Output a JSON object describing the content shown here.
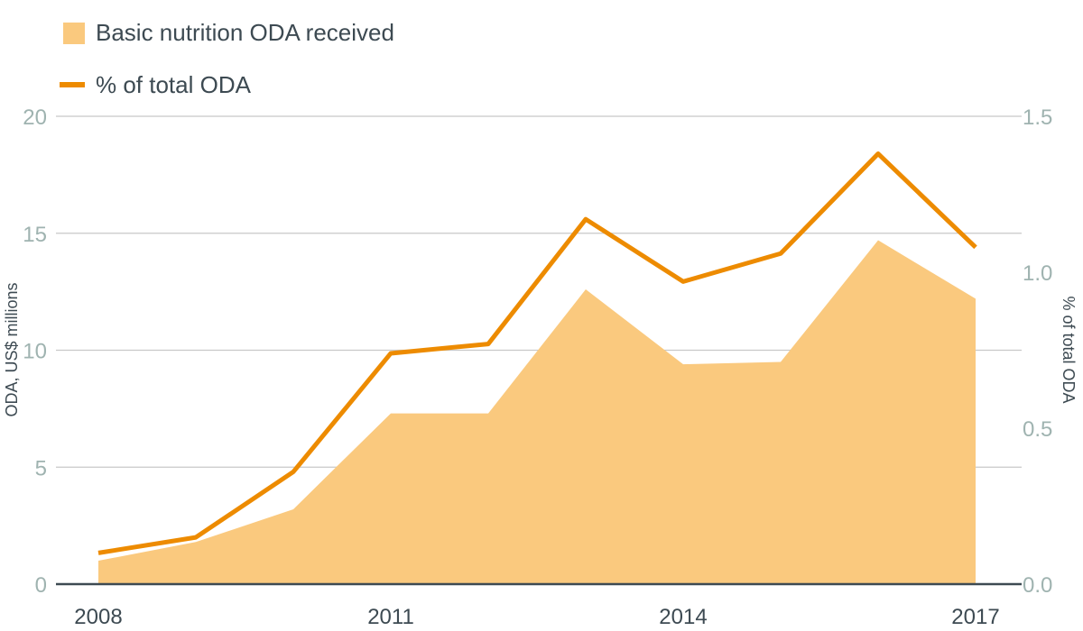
{
  "chart_data": {
    "type": "area",
    "legend": {
      "area_label": "Basic nutrition ODA received",
      "line_label": "% of total ODA",
      "position": "top-left"
    },
    "x": [
      2008,
      2009,
      2010,
      2011,
      2012,
      2013,
      2014,
      2015,
      2016,
      2017
    ],
    "x_tick_labels": [
      "2008",
      "2011",
      "2014",
      "2017"
    ],
    "ylabel_left": "ODA, US$ millions",
    "ylabel_right": "% of total ODA",
    "ylim_left": [
      0,
      20
    ],
    "ylim_right": [
      0,
      1.5
    ],
    "y_ticks_left": [
      "0",
      "5",
      "10",
      "15",
      "20"
    ],
    "y_ticks_right": [
      "0.0",
      "0.5",
      "1.0",
      "1.5"
    ],
    "grid": true,
    "series": [
      {
        "name": "Basic nutrition ODA received",
        "type": "area",
        "axis": "left",
        "color": "#fac97e",
        "values": [
          1.0,
          1.8,
          3.2,
          7.3,
          7.3,
          12.6,
          9.4,
          9.5,
          14.7,
          12.2
        ]
      },
      {
        "name": "% of total ODA",
        "type": "line",
        "axis": "right",
        "color": "#ed8b00",
        "values": [
          0.1,
          0.15,
          0.36,
          0.74,
          0.77,
          1.17,
          0.97,
          1.06,
          1.38,
          1.08
        ]
      }
    ]
  }
}
